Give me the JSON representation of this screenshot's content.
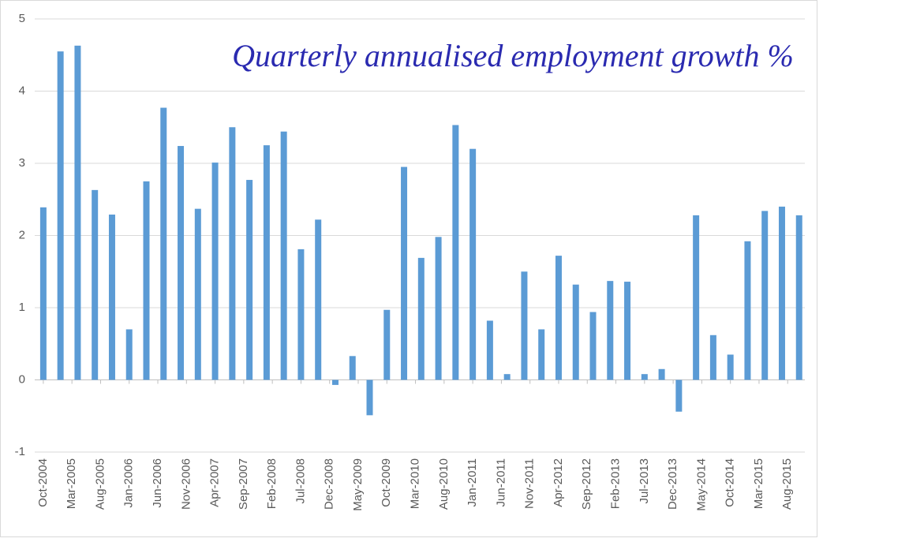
{
  "chart_data": {
    "type": "bar",
    "title": "Quarterly annualised employment growth %",
    "x": [
      0,
      3,
      6,
      9,
      12,
      15,
      18,
      21,
      24,
      27,
      30,
      33,
      36,
      39,
      42,
      45,
      48,
      51,
      54,
      57,
      60,
      63,
      66,
      69,
      72,
      75,
      78,
      81,
      84,
      87,
      90,
      93,
      96,
      99,
      102,
      105,
      108,
      111,
      114,
      117,
      120,
      123,
      126,
      129,
      132
    ],
    "values": [
      2.39,
      4.55,
      4.63,
      2.63,
      2.29,
      0.7,
      2.75,
      3.77,
      3.24,
      2.37,
      3.01,
      3.5,
      2.77,
      3.25,
      3.44,
      1.81,
      2.22,
      -0.07,
      0.33,
      -0.49,
      0.97,
      2.95,
      1.69,
      1.98,
      3.53,
      3.2,
      0.82,
      0.08,
      1.5,
      0.7,
      1.72,
      1.32,
      0.94,
      1.37,
      1.36,
      0.08,
      0.15,
      -0.44,
      2.28,
      0.62,
      0.35,
      1.92,
      2.34,
      2.4,
      2.28
    ],
    "color": "#5b9bd5",
    "xlim": [
      -1.5,
      133
    ],
    "xticks": [
      {
        "value": 0,
        "label": "Oct-2004"
      },
      {
        "value": 5,
        "label": "Mar-2005"
      },
      {
        "value": 10,
        "label": "Aug-2005"
      },
      {
        "value": 15,
        "label": "Jan-2006"
      },
      {
        "value": 20,
        "label": "Jun-2006"
      },
      {
        "value": 25,
        "label": "Nov-2006"
      },
      {
        "value": 30,
        "label": "Apr-2007"
      },
      {
        "value": 35,
        "label": "Sep-2007"
      },
      {
        "value": 40,
        "label": "Feb-2008"
      },
      {
        "value": 45,
        "label": "Jul-2008"
      },
      {
        "value": 50,
        "label": "Dec-2008"
      },
      {
        "value": 55,
        "label": "May-2009"
      },
      {
        "value": 60,
        "label": "Oct-2009"
      },
      {
        "value": 65,
        "label": "Mar-2010"
      },
      {
        "value": 70,
        "label": "Aug-2010"
      },
      {
        "value": 75,
        "label": "Jan-2011"
      },
      {
        "value": 80,
        "label": "Jun-2011"
      },
      {
        "value": 85,
        "label": "Nov-2011"
      },
      {
        "value": 90,
        "label": "Apr-2012"
      },
      {
        "value": 95,
        "label": "Sep-2012"
      },
      {
        "value": 100,
        "label": "Feb-2013"
      },
      {
        "value": 105,
        "label": "Jul-2013"
      },
      {
        "value": 110,
        "label": "Dec-2013"
      },
      {
        "value": 115,
        "label": "May-2014"
      },
      {
        "value": 120,
        "label": "Oct-2014"
      },
      {
        "value": 125,
        "label": "Mar-2015"
      },
      {
        "value": 130,
        "label": "Aug-2015"
      }
    ],
    "ylim": [
      -1,
      5
    ],
    "yticks": [
      -1,
      0,
      1,
      2,
      3,
      4,
      5
    ],
    "grid": true
  }
}
